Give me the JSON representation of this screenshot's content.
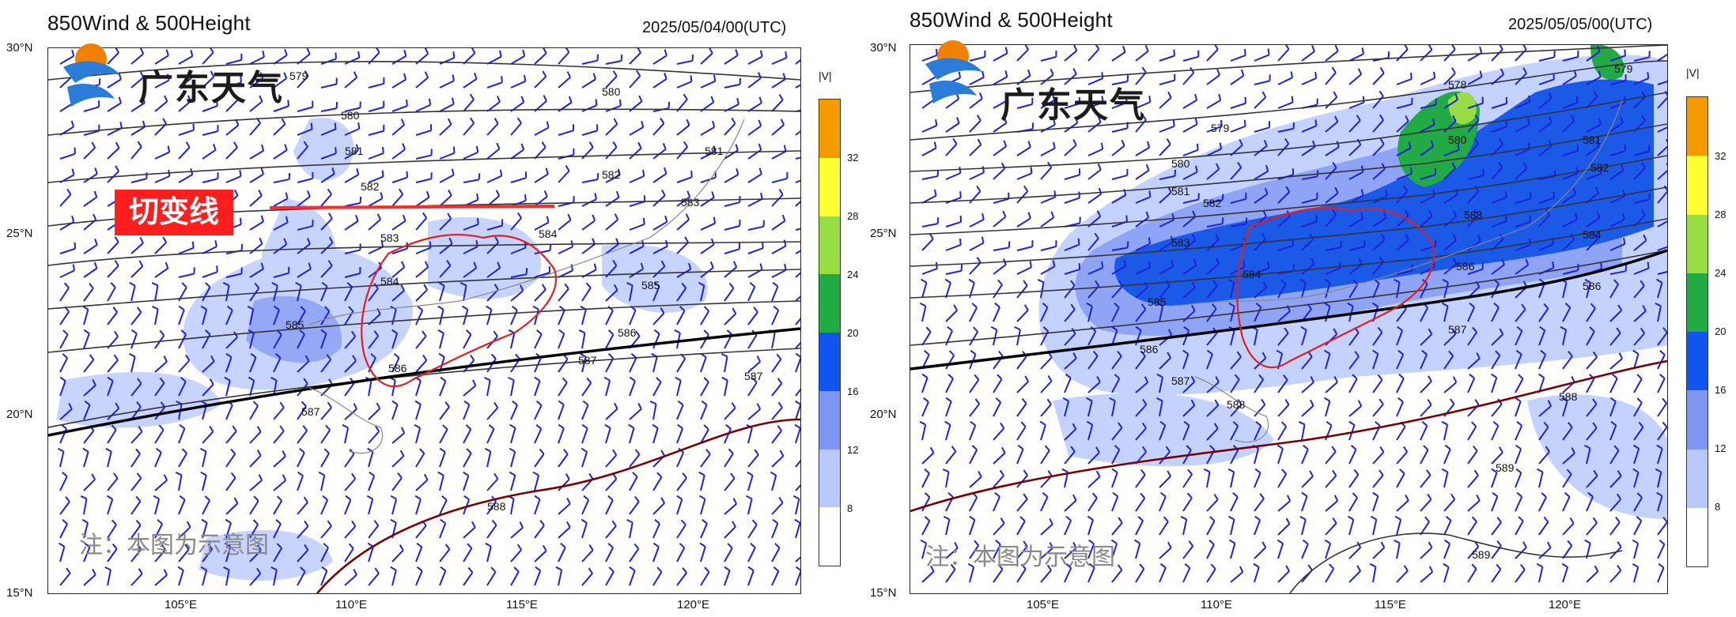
{
  "panels": [
    {
      "title": "850Wind & 500Height",
      "timestamp": "2025/05/04/00(UTC)",
      "logo_text": "广东天气",
      "note": "注：本图为示意图",
      "annotation": "切变线",
      "contour_labels": [
        "579",
        "580",
        "581",
        "582",
        "583",
        "584",
        "585",
        "586",
        "587",
        "588"
      ]
    },
    {
      "title": "850Wind & 500Height",
      "timestamp": "2025/05/05/00(UTC)",
      "logo_text": "广东天气",
      "note": "注：本图为示意图",
      "contour_labels": [
        "578",
        "579",
        "580",
        "581",
        "582",
        "583",
        "584",
        "585",
        "586",
        "587",
        "588",
        "589"
      ]
    }
  ],
  "axes": {
    "lat_labels": [
      "30°N",
      "25°N",
      "20°N",
      "15°N"
    ],
    "lon_labels": [
      "105°E",
      "110°E",
      "115°E",
      "120°E"
    ]
  },
  "colorbar": {
    "title": "|V|",
    "ticks": [
      "32",
      "28",
      "24",
      "20",
      "16",
      "12",
      "8"
    ],
    "colors": [
      "#f59a00",
      "#ffff33",
      "#99dd44",
      "#22aa44",
      "#1155ee",
      "#7f95f2",
      "#b9c8ff",
      "#ffffff"
    ]
  },
  "style": {
    "shade_light": "#c4d2ff",
    "shade_mid": "#8fa4f5",
    "shade_dark": "#1a5ae6",
    "barb": "#2020d8",
    "contour": "#333333",
    "contour_586": "#000000",
    "contour_588": "#7a0000",
    "border_guangdong": "#e02020",
    "shear_line": "#ff2a2a"
  }
}
